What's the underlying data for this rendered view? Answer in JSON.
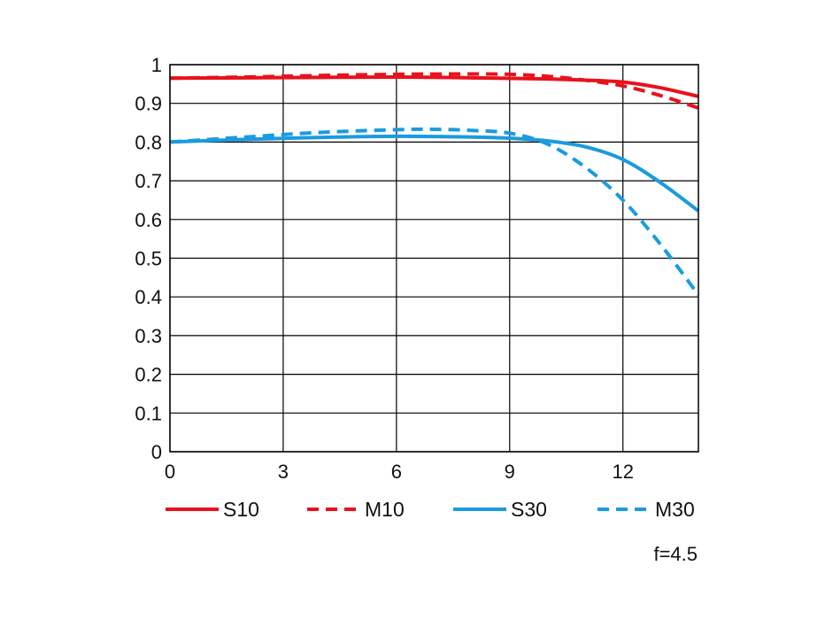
{
  "chart_data": {
    "type": "line",
    "title": "",
    "xlabel": "",
    "ylabel": "",
    "xlim": [
      0,
      14
    ],
    "ylim": [
      0,
      1
    ],
    "xticks": [
      0,
      3,
      6,
      9,
      12
    ],
    "xtick_labels": [
      "0",
      "3",
      "6",
      "9",
      "12"
    ],
    "yticks": [
      0,
      0.1,
      0.2,
      0.3,
      0.4,
      0.5,
      0.6,
      0.7,
      0.8,
      0.9,
      1
    ],
    "ytick_labels": [
      "0",
      "0.1",
      "0.2",
      "0.3",
      "0.4",
      "0.5",
      "0.6",
      "0.7",
      "0.8",
      "0.9",
      "1"
    ],
    "grid": true,
    "legend_position": "bottom",
    "annotation": "f=4.5",
    "series": [
      {
        "name": "S10",
        "color": "#e8121c",
        "dashed": false,
        "x": [
          0,
          2,
          4,
          6,
          8,
          10,
          11,
          12,
          13,
          14
        ],
        "y": [
          0.965,
          0.966,
          0.967,
          0.968,
          0.966,
          0.963,
          0.96,
          0.955,
          0.94,
          0.918
        ]
      },
      {
        "name": "M10",
        "color": "#e8121c",
        "dashed": true,
        "x": [
          0,
          2,
          4,
          6,
          8,
          9,
          10,
          11,
          12,
          13,
          14
        ],
        "y": [
          0.965,
          0.968,
          0.972,
          0.975,
          0.976,
          0.975,
          0.97,
          0.96,
          0.945,
          0.92,
          0.888
        ]
      },
      {
        "name": "S30",
        "color": "#1a9be0",
        "dashed": false,
        "x": [
          0,
          2,
          4,
          6,
          8,
          9,
          10,
          11,
          12,
          13,
          14
        ],
        "y": [
          0.8,
          0.807,
          0.812,
          0.815,
          0.813,
          0.81,
          0.803,
          0.788,
          0.755,
          0.695,
          0.622
        ]
      },
      {
        "name": "M30",
        "color": "#1a9be0",
        "dashed": true,
        "x": [
          0,
          2,
          4,
          6,
          7,
          8,
          9,
          10,
          11,
          12,
          13,
          14
        ],
        "y": [
          0.8,
          0.813,
          0.825,
          0.832,
          0.833,
          0.83,
          0.823,
          0.795,
          0.735,
          0.65,
          0.535,
          0.405
        ]
      }
    ]
  }
}
